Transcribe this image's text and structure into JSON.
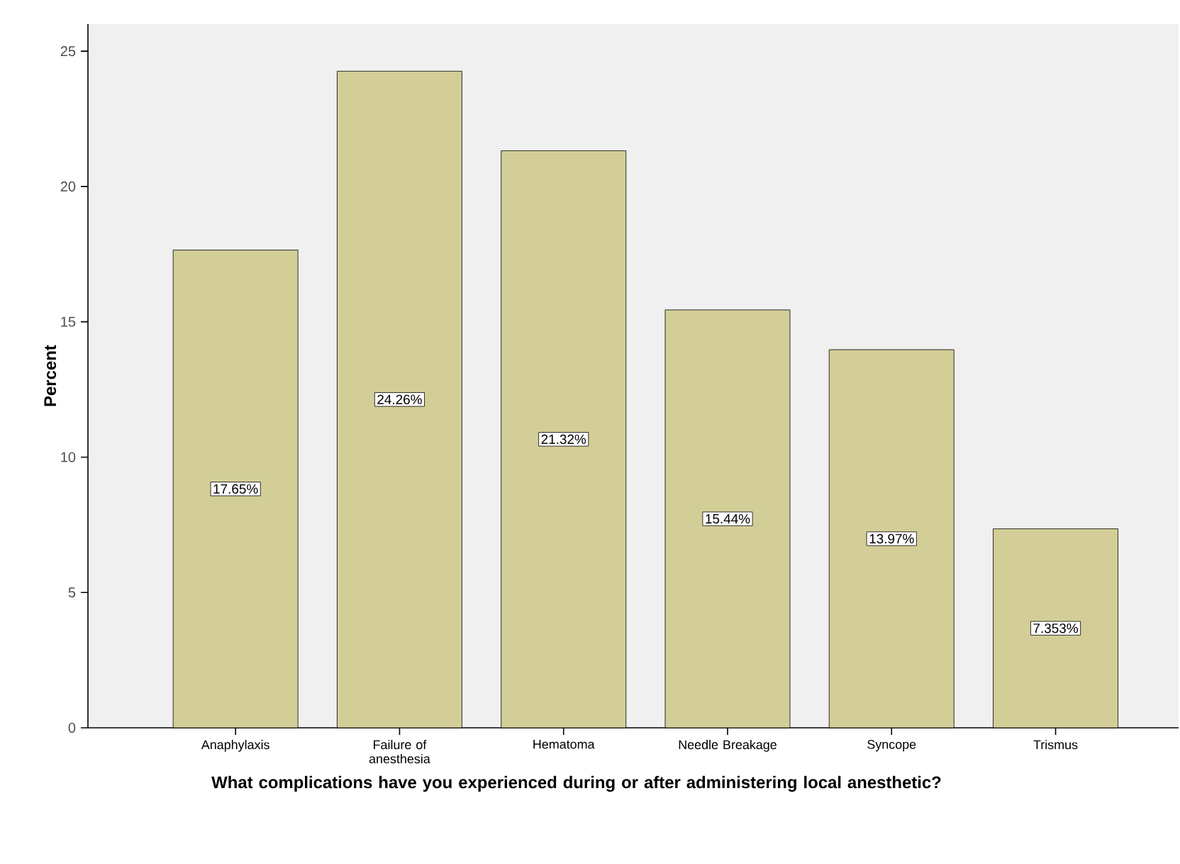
{
  "chart_data": {
    "type": "bar",
    "xlabel": "What complications have you experienced during or after administering local anesthetic?",
    "ylabel": "Percent",
    "categories": [
      "Anaphylaxis",
      "Failure of anesthesia",
      "Hematoma",
      "Needle Breakage",
      "Syncope",
      "Trismus"
    ],
    "values": [
      17.65,
      24.26,
      21.32,
      15.44,
      13.97,
      7.353
    ],
    "value_labels": [
      "17.65%",
      "24.26%",
      "21.32%",
      "15.44%",
      "13.97%",
      "7.353%"
    ],
    "color": "#d3ce97",
    "ylim": [
      0,
      26
    ],
    "yticks": [
      0,
      5,
      10,
      15,
      20,
      25
    ],
    "grid": false
  }
}
